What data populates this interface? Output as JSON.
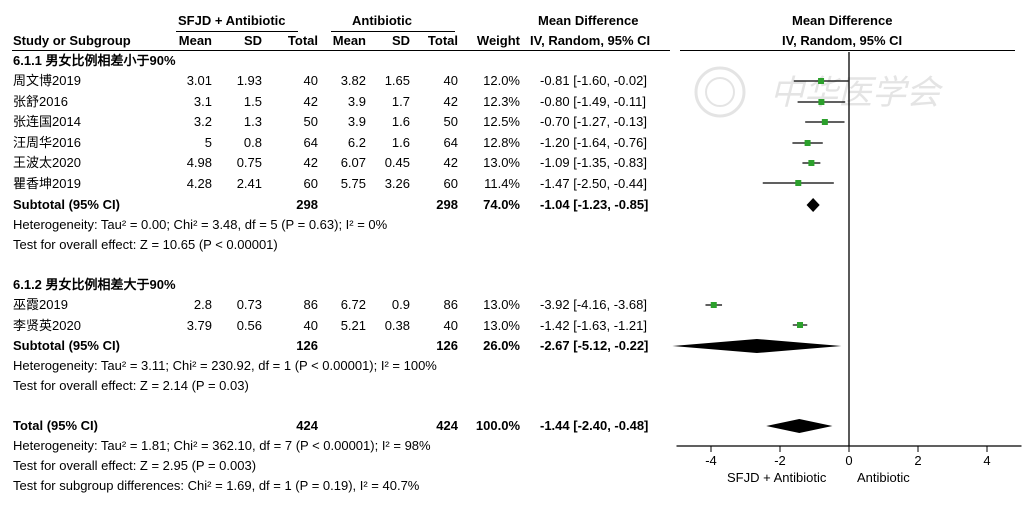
{
  "header": {
    "group_exp": "SFJD + Antibiotic",
    "group_ctl": "Antibiotic",
    "md_title": "Mean Difference",
    "md_method": "IV, Random, 95% CI",
    "plot_title": "Mean Difference",
    "plot_method": "IV, Random, 95% CI",
    "study_col": "Study or Subgroup",
    "mean": "Mean",
    "sd": "SD",
    "total": "Total",
    "weight": "Weight"
  },
  "subgroups": [
    {
      "title": "6.1.1 男女比例相差小于90%",
      "studies": [
        {
          "name": "周文博2019",
          "m1": "3.01",
          "sd1": "1.93",
          "n1": "40",
          "m2": "3.82",
          "sd2": "1.65",
          "n2": "40",
          "weight": "12.0%",
          "ci": "-0.81 [-1.60, -0.02]"
        },
        {
          "name": "张舒2016",
          "m1": "3.1",
          "sd1": "1.5",
          "n1": "42",
          "m2": "3.9",
          "sd2": "1.7",
          "n2": "42",
          "weight": "12.3%",
          "ci": "-0.80 [-1.49, -0.11]"
        },
        {
          "name": "张连国2014",
          "m1": "3.2",
          "sd1": "1.3",
          "n1": "50",
          "m2": "3.9",
          "sd2": "1.6",
          "n2": "50",
          "weight": "12.5%",
          "ci": "-0.70 [-1.27, -0.13]"
        },
        {
          "name": "汪周华2016",
          "m1": "5",
          "sd1": "0.8",
          "n1": "64",
          "m2": "6.2",
          "sd2": "1.6",
          "n2": "64",
          "weight": "12.8%",
          "ci": "-1.20 [-1.64, -0.76]"
        },
        {
          "name": "王波太2020",
          "m1": "4.98",
          "sd1": "0.75",
          "n1": "42",
          "m2": "6.07",
          "sd2": "0.45",
          "n2": "42",
          "weight": "13.0%",
          "ci": "-1.09 [-1.35, -0.83]"
        },
        {
          "name": "瞿香坤2019",
          "m1": "4.28",
          "sd1": "2.41",
          "n1": "60",
          "m2": "5.75",
          "sd2": "3.26",
          "n2": "60",
          "weight": "11.4%",
          "ci": "-1.47 [-2.50, -0.44]"
        }
      ],
      "subtotal": {
        "label": "Subtotal (95% CI)",
        "n1": "298",
        "n2": "298",
        "weight": "74.0%",
        "ci": "-1.04 [-1.23, -0.85]"
      },
      "heterogeneity": "Heterogeneity: Tau² = 0.00; Chi² = 3.48, df = 5 (P = 0.63); I² = 0%",
      "overall": "Test for overall effect: Z = 10.65 (P < 0.00001)"
    },
    {
      "title": "6.1.2 男女比例相差大于90%",
      "studies": [
        {
          "name": "巫霞2019",
          "m1": "2.8",
          "sd1": "0.73",
          "n1": "86",
          "m2": "6.72",
          "sd2": "0.9",
          "n2": "86",
          "weight": "13.0%",
          "ci": "-3.92 [-4.16, -3.68]"
        },
        {
          "name": "李贤英2020",
          "m1": "3.79",
          "sd1": "0.56",
          "n1": "40",
          "m2": "5.21",
          "sd2": "0.38",
          "n2": "40",
          "weight": "13.0%",
          "ci": "-1.42 [-1.63, -1.21]"
        }
      ],
      "subtotal": {
        "label": "Subtotal (95% CI)",
        "n1": "126",
        "n2": "126",
        "weight": "26.0%",
        "ci": "-2.67 [-5.12, -0.22]"
      },
      "heterogeneity": "Heterogeneity: Tau² = 3.11; Chi² = 230.92, df = 1 (P < 0.00001); I² = 100%",
      "overall": "Test for overall effect: Z = 2.14 (P = 0.03)"
    }
  ],
  "total": {
    "label": "Total (95% CI)",
    "n1": "424",
    "n2": "424",
    "weight": "100.0%",
    "ci": "-1.44 [-2.40, -0.48]",
    "heterogeneity": "Heterogeneity: Tau² = 1.81; Chi² = 362.10, df = 7 (P < 0.00001); I² = 98%",
    "overall": "Test for overall effect: Z = 2.95 (P = 0.003)",
    "subgroup_diff": "Test for subgroup differences: Chi² = 1.69, df = 1 (P = 0.19), I² = 40.7%"
  },
  "axis": {
    "favours_left": "SFJD + Antibiotic",
    "favours_right": "Antibiotic"
  },
  "watermark": "中华医学会",
  "chart_data": {
    "type": "scatter",
    "subtype": "forest",
    "xlim": [
      -5,
      5
    ],
    "xticks": [
      -4,
      -2,
      0,
      2,
      4
    ],
    "colors": {
      "study_marker": "#2ca02c",
      "summary": "#000000",
      "axis": "#000000"
    },
    "studies": [
      {
        "label": "周文博2019",
        "md": -0.81,
        "lo": -1.6,
        "hi": -0.02,
        "weight": 12.0
      },
      {
        "label": "张舒2016",
        "md": -0.8,
        "lo": -1.49,
        "hi": -0.11,
        "weight": 12.3
      },
      {
        "label": "张连国2014",
        "md": -0.7,
        "lo": -1.27,
        "hi": -0.13,
        "weight": 12.5
      },
      {
        "label": "汪周华2016",
        "md": -1.2,
        "lo": -1.64,
        "hi": -0.76,
        "weight": 12.8
      },
      {
        "label": "王波太2020",
        "md": -1.09,
        "lo": -1.35,
        "hi": -0.83,
        "weight": 13.0
      },
      {
        "label": "瞿香坤2019",
        "md": -1.47,
        "lo": -2.5,
        "hi": -0.44,
        "weight": 11.4
      },
      {
        "label": "巫霞2019",
        "md": -3.92,
        "lo": -4.16,
        "hi": -3.68,
        "weight": 13.0
      },
      {
        "label": "李贤英2020",
        "md": -1.42,
        "lo": -1.63,
        "hi": -1.21,
        "weight": 13.0
      }
    ],
    "summaries": [
      {
        "label": "Subtotal 6.1.1",
        "md": -1.04,
        "lo": -1.23,
        "hi": -0.85
      },
      {
        "label": "Subtotal 6.1.2",
        "md": -2.67,
        "lo": -5.12,
        "hi": -0.22
      },
      {
        "label": "Total",
        "md": -1.44,
        "lo": -2.4,
        "hi": -0.48
      }
    ]
  }
}
